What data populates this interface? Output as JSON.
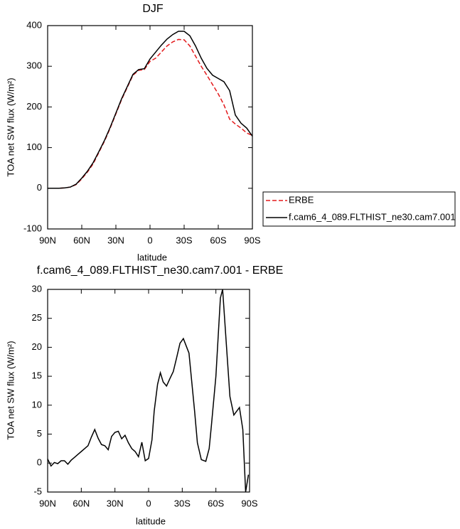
{
  "chart_data": [
    {
      "type": "line",
      "title": "DJF",
      "xlabel": "latitude",
      "ylabel": "TOA net SW flux (W/m²)",
      "x": [
        90,
        85,
        80,
        75,
        70,
        65,
        60,
        55,
        50,
        45,
        40,
        35,
        30,
        25,
        20,
        15,
        10,
        5,
        0,
        -5,
        -10,
        -15,
        -20,
        -25,
        -30,
        -35,
        -40,
        -45,
        -50,
        -55,
        -60,
        -65,
        -70,
        -75,
        -80,
        -85,
        -90
      ],
      "series": [
        {
          "name": "ERBE",
          "color": "#e31a1c",
          "dash": true,
          "values": [
            0,
            0,
            0,
            1,
            3,
            9,
            23,
            40,
            60,
            88,
            116,
            148,
            183,
            218,
            248,
            278,
            290,
            292,
            312,
            320,
            335,
            350,
            360,
            366,
            365,
            350,
            325,
            300,
            278,
            255,
            232,
            205,
            170,
            158,
            148,
            136,
            130
          ]
        },
        {
          "name": "f.cam6_4_089.FLTHIST_ne30.cam7.001",
          "color": "#000000",
          "dash": false,
          "values": [
            0,
            0,
            0,
            1,
            3,
            10,
            25,
            42,
            63,
            90,
            118,
            150,
            185,
            220,
            250,
            280,
            292,
            294,
            318,
            335,
            352,
            367,
            378,
            386,
            386,
            375,
            350,
            320,
            295,
            278,
            270,
            262,
            240,
            180,
            160,
            148,
            128
          ]
        }
      ],
      "xlim": [
        90,
        -90
      ],
      "xticks": [
        {
          "value": 90,
          "label": "90N"
        },
        {
          "value": 60,
          "label": "60N"
        },
        {
          "value": 30,
          "label": "30N"
        },
        0,
        {
          "value": -30,
          "label": "30S"
        },
        {
          "value": -60,
          "label": "60S"
        },
        {
          "value": -90,
          "label": "90S"
        }
      ],
      "ylim": [
        -100,
        400
      ],
      "yticks": [
        -100,
        0,
        100,
        200,
        300,
        400
      ],
      "grid": false,
      "legend": "right"
    },
    {
      "type": "line",
      "title": "f.cam6_4_089.FLTHIST_ne30.cam7.001 - ERBE",
      "xlabel": "latitude",
      "ylabel": "TOA net SW flux (W/m²)",
      "x": [
        90,
        87,
        84,
        81,
        78,
        75,
        72,
        69,
        66,
        63,
        60,
        57,
        54,
        51,
        48,
        45,
        42,
        39,
        36,
        33,
        30,
        27,
        24,
        21,
        18,
        15,
        12,
        9,
        6,
        3,
        0,
        -3,
        -5,
        -8,
        -10.5,
        -13,
        -16,
        -19,
        -22,
        -25,
        -28,
        -31,
        -34,
        -36,
        -38.5,
        -41,
        -43.5,
        -47,
        -51,
        -54,
        -56,
        -60,
        -64,
        -66,
        -69.5,
        -72.5,
        -76,
        -81,
        -84,
        -86.5,
        -89
      ],
      "series": [
        {
          "name": "f.cam6_4_089.FLTHIST_ne30.cam7.001 - ERBE",
          "color": "#000000",
          "dash": false,
          "values": [
            0.7,
            -0.5,
            0.1,
            -0.1,
            0.4,
            0.4,
            -0.2,
            0.5,
            1,
            1.5,
            2,
            2.5,
            3,
            4.5,
            5.8,
            4.3,
            3.2,
            3,
            2.3,
            4.6,
            5.3,
            5.5,
            4.2,
            4.8,
            3.5,
            2.5,
            2,
            1.1,
            3.6,
            0.4,
            0.8,
            4,
            9,
            13.6,
            15.6,
            14,
            13.3,
            14.6,
            15.8,
            18.2,
            20.7,
            21.5,
            20,
            19,
            14,
            9,
            3.5,
            0.6,
            0.3,
            2.5,
            6.5,
            15,
            28.5,
            30,
            20,
            11.5,
            8.3,
            9.6,
            5.8,
            -5,
            -2
          ]
        }
      ],
      "xlim": [
        90,
        -90
      ],
      "xticks": [
        {
          "value": 90,
          "label": "90N"
        },
        {
          "value": 60,
          "label": "60N"
        },
        {
          "value": 30,
          "label": "30N"
        },
        0,
        {
          "value": -30,
          "label": "30S"
        },
        {
          "value": -60,
          "label": "60S"
        },
        {
          "value": -90,
          "label": "90S"
        }
      ],
      "ylim": [
        -5,
        30
      ],
      "yticks": [
        -5,
        0,
        5,
        10,
        15,
        20,
        25,
        30
      ],
      "grid": false
    }
  ]
}
